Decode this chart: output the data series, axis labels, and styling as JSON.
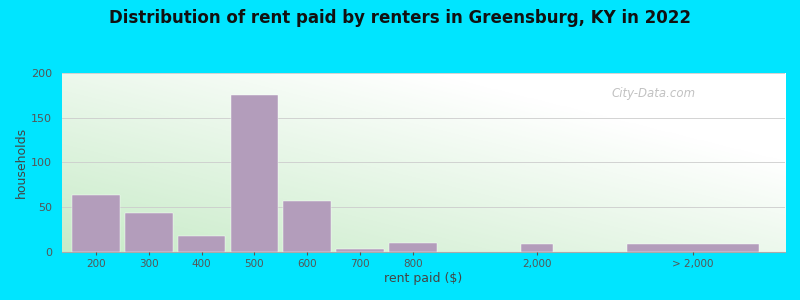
{
  "title": "Distribution of rent paid by renters in Greensburg, KY in 2022",
  "xlabel": "rent paid ($)",
  "ylabel": "households",
  "bar_color": "#b39dbb",
  "background_outer": "#00e5ff",
  "ylim": [
    0,
    200
  ],
  "yticks": [
    0,
    50,
    100,
    150,
    200
  ],
  "bar_values": [
    63,
    43,
    18,
    175,
    57,
    3,
    10,
    8,
    8
  ],
  "bar_left": [
    0.0,
    1.0,
    2.0,
    3.0,
    4.0,
    5.0,
    6.0,
    8.5,
    10.5
  ],
  "bar_widths": [
    0.9,
    0.9,
    0.9,
    0.9,
    0.9,
    0.9,
    0.9,
    0.6,
    2.5
  ],
  "xtick_positions": [
    0.45,
    1.45,
    2.45,
    3.45,
    4.45,
    5.45,
    6.45,
    8.8,
    11.75
  ],
  "xtick_labels": [
    "200",
    "300",
    "400",
    "500",
    "600",
    "700",
    "800",
    "2,000",
    "> 2,000"
  ],
  "xlim": [
    -0.2,
    13.5
  ],
  "watermark": "City-Data.com",
  "title_fontsize": 12,
  "axis_label_fontsize": 9
}
